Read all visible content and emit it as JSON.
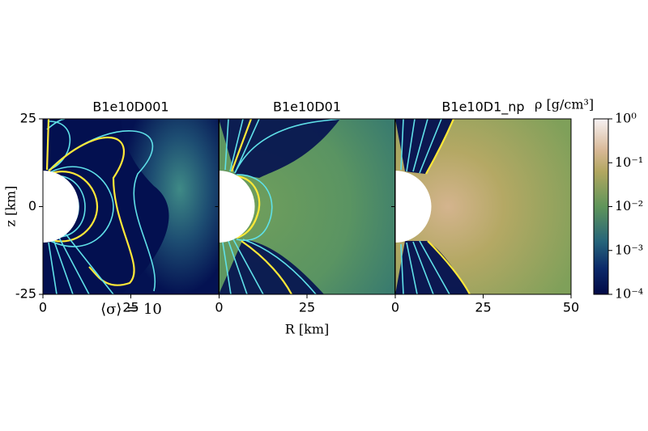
{
  "chart_data": {
    "type": "heatmap",
    "panels": [
      {
        "title": "B1e10D001",
        "xticks": [
          0,
          25
        ]
      },
      {
        "title": "B1e10D01",
        "xticks": [
          0,
          25
        ]
      },
      {
        "title": "B1e10D1_np",
        "xticks": [
          0,
          25,
          50
        ]
      }
    ],
    "xlabel": "R [km]",
    "ylabel": "z [km]",
    "xlim": [
      0,
      50
    ],
    "ylim": [
      -25,
      25
    ],
    "yticks": [
      -25,
      0,
      25
    ],
    "annotation": "⟨σ⟩ = 10",
    "colorbar": {
      "label": "ρ [g/cm³]",
      "log": true,
      "lim": [
        0.0001,
        1
      ],
      "ticks": [
        {
          "value": 1,
          "label": "10⁰"
        },
        {
          "value": 0.1,
          "label": "10⁻¹"
        },
        {
          "value": 0.01,
          "label": "10⁻²"
        },
        {
          "value": 0.001,
          "label": "10⁻³"
        },
        {
          "value": 0.0001,
          "label": "10⁻⁴"
        }
      ]
    }
  }
}
